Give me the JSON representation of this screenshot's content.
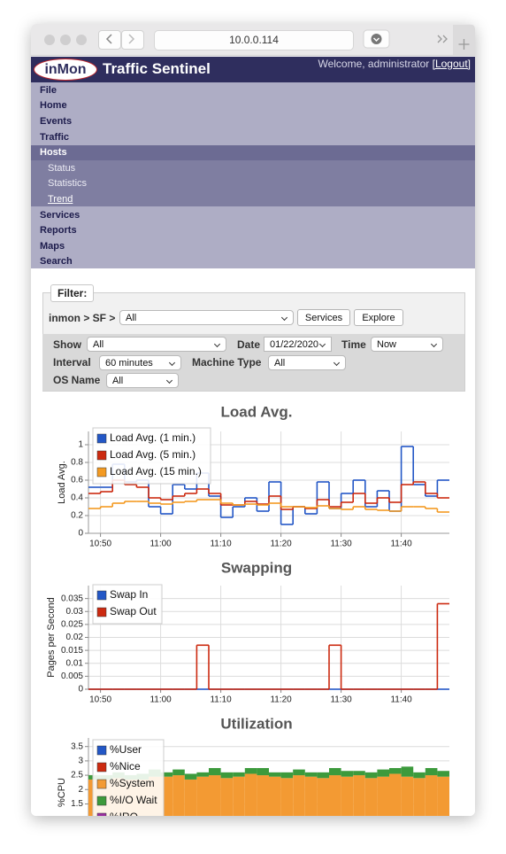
{
  "browser": {
    "url": "10.0.0.114"
  },
  "header": {
    "logo": "inMon",
    "product": "Traffic Sentinel",
    "welcome": "Welcome, administrator",
    "logout": "[Logout]"
  },
  "nav": {
    "items": [
      "File",
      "Home",
      "Events",
      "Traffic",
      "Hosts"
    ],
    "subitems": [
      "Status",
      "Statistics",
      "Trend"
    ],
    "more": [
      "Services",
      "Reports",
      "Maps",
      "Search"
    ]
  },
  "filter": {
    "legend": "Filter:",
    "path": "inmon > SF >",
    "scope": "All",
    "buttons": [
      "Services",
      "Explore"
    ],
    "fields": [
      {
        "label": "Show",
        "value": "All"
      },
      {
        "label": "Date",
        "value": "01/22/2020"
      },
      {
        "label": "Time",
        "value": "Now"
      },
      {
        "label": "Interval",
        "value": "60 minutes"
      },
      {
        "label": "Machine Type",
        "value": "All"
      },
      {
        "label": "OS Name",
        "value": "All"
      }
    ]
  },
  "chart_data": [
    {
      "type": "line",
      "step": true,
      "title": "Load Avg.",
      "y_label": "Load Avg.",
      "grid": true,
      "legend": "upper left",
      "x": [
        "10:48",
        "10:50",
        "10:52",
        "10:54",
        "10:56",
        "10:58",
        "11:00",
        "11:02",
        "11:04",
        "11:06",
        "11:08",
        "11:10",
        "11:12",
        "11:14",
        "11:16",
        "11:18",
        "11:20",
        "11:22",
        "11:24",
        "11:26",
        "11:28",
        "11:30",
        "11:32",
        "11:34",
        "11:36",
        "11:38",
        "11:40",
        "11:42",
        "11:44",
        "11:46"
      ],
      "xlim": [
        "10:48",
        "11:48"
      ],
      "xticks": [
        "10:50",
        "11:00",
        "11:10",
        "11:20",
        "11:30",
        "11:40"
      ],
      "ylim": [
        0,
        1.15
      ],
      "yticks": [
        0,
        0.2,
        0.4,
        0.6,
        0.8,
        1
      ],
      "series": [
        {
          "name": "Load Avg. (1 min.)",
          "color": "#2357c6",
          "values": [
            0.52,
            0.52,
            0.78,
            0.58,
            0.6,
            0.3,
            0.22,
            0.55,
            0.5,
            0.68,
            0.42,
            0.18,
            0.3,
            0.4,
            0.25,
            0.58,
            0.1,
            0.3,
            0.22,
            0.58,
            0.28,
            0.45,
            0.6,
            0.3,
            0.48,
            0.25,
            0.98,
            0.55,
            0.42,
            0.6
          ]
        },
        {
          "name": "Load Avg. (5 min.)",
          "color": "#cc2a10",
          "values": [
            0.45,
            0.47,
            0.6,
            0.55,
            0.52,
            0.4,
            0.38,
            0.42,
            0.45,
            0.5,
            0.45,
            0.32,
            0.32,
            0.36,
            0.33,
            0.42,
            0.27,
            0.3,
            0.28,
            0.38,
            0.3,
            0.35,
            0.45,
            0.34,
            0.4,
            0.35,
            0.55,
            0.58,
            0.45,
            0.4
          ]
        },
        {
          "name": "Load Avg. (15 min.)",
          "color": "#f39a22",
          "values": [
            0.28,
            0.3,
            0.34,
            0.36,
            0.36,
            0.34,
            0.33,
            0.35,
            0.36,
            0.38,
            0.38,
            0.34,
            0.32,
            0.33,
            0.32,
            0.34,
            0.3,
            0.3,
            0.29,
            0.31,
            0.28,
            0.27,
            0.3,
            0.27,
            0.26,
            0.25,
            0.3,
            0.3,
            0.28,
            0.24
          ]
        }
      ]
    },
    {
      "type": "line",
      "step": true,
      "title": "Swapping",
      "y_label": "Pages per Second",
      "grid": true,
      "legend": "upper left",
      "x": [
        "10:48",
        "10:50",
        "10:52",
        "10:54",
        "10:56",
        "10:58",
        "11:00",
        "11:02",
        "11:04",
        "11:06",
        "11:08",
        "11:10",
        "11:12",
        "11:14",
        "11:16",
        "11:18",
        "11:20",
        "11:22",
        "11:24",
        "11:26",
        "11:28",
        "11:30",
        "11:32",
        "11:34",
        "11:36",
        "11:38",
        "11:40",
        "11:42",
        "11:44",
        "11:46"
      ],
      "xlim": [
        "10:48",
        "11:48"
      ],
      "xticks": [
        "10:50",
        "11:00",
        "11:10",
        "11:20",
        "11:30",
        "11:40"
      ],
      "ylim": [
        0,
        0.04
      ],
      "yticks": [
        0,
        0.005,
        0.01,
        0.015,
        0.02,
        0.025,
        0.03,
        0.035
      ],
      "series": [
        {
          "name": "Swap In",
          "color": "#2357c6",
          "values": [
            0,
            0,
            0,
            0,
            0,
            0,
            0,
            0,
            0,
            0,
            0,
            0,
            0,
            0,
            0,
            0,
            0,
            0,
            0,
            0,
            0,
            0,
            0,
            0,
            0,
            0,
            0,
            0,
            0,
            0
          ]
        },
        {
          "name": "Swap Out",
          "color": "#cc2a10",
          "values": [
            0,
            0,
            0,
            0,
            0,
            0,
            0,
            0,
            0,
            0.017,
            0,
            0,
            0,
            0,
            0,
            0,
            0,
            0,
            0,
            0,
            0.017,
            0,
            0,
            0,
            0,
            0,
            0,
            0,
            0,
            0.033
          ]
        }
      ]
    },
    {
      "type": "bar",
      "stacked": true,
      "title": "Utilization",
      "y_label": "%CPU",
      "grid": true,
      "legend": "upper left",
      "x": [
        "10:48",
        "10:50",
        "10:52",
        "10:54",
        "10:56",
        "10:58",
        "11:00",
        "11:02",
        "11:04",
        "11:06",
        "11:08",
        "11:10",
        "11:12",
        "11:14",
        "11:16",
        "11:18",
        "11:20",
        "11:22",
        "11:24",
        "11:26",
        "11:28",
        "11:30",
        "11:32",
        "11:34",
        "11:36",
        "11:38",
        "11:40",
        "11:42",
        "11:44",
        "11:46"
      ],
      "xlim": [
        "10:48",
        "11:48"
      ],
      "ylim": [
        0,
        3.8
      ],
      "yticks": [
        1.5,
        2,
        2.5,
        3,
        3.5
      ],
      "series": [
        {
          "name": "%User",
          "color": "#2357c6",
          "values": [
            0.05,
            0.05,
            0.05,
            0.05,
            0.05,
            0.05,
            0.05,
            0.05,
            0.05,
            0.05,
            0.05,
            0.05,
            0.05,
            0.05,
            0.05,
            0.05,
            0.05,
            0.05,
            0.05,
            0.05,
            0.05,
            0.05,
            0.05,
            0.05,
            0.05,
            0.05,
            0.05,
            0.05,
            0.05,
            0.05
          ]
        },
        {
          "name": "%Nice",
          "color": "#cc2a10",
          "values": [
            0,
            0,
            0,
            0,
            0,
            0,
            0,
            0,
            0,
            0,
            0,
            0,
            0,
            0,
            0,
            0,
            0,
            0,
            0,
            0,
            0,
            0,
            0,
            0,
            0,
            0,
            0,
            0,
            0,
            0
          ]
        },
        {
          "name": "%System",
          "color": "#f39a33",
          "values": [
            2.3,
            2.3,
            2.35,
            2.3,
            2.3,
            2.4,
            2.4,
            2.45,
            2.3,
            2.4,
            2.45,
            2.35,
            2.4,
            2.5,
            2.45,
            2.4,
            2.35,
            2.45,
            2.4,
            2.35,
            2.45,
            2.4,
            2.45,
            2.35,
            2.4,
            2.5,
            2.4,
            2.35,
            2.45,
            2.4
          ]
        },
        {
          "name": "%I/O Wait",
          "color": "#3c9a3c",
          "values": [
            0.15,
            0.15,
            0.2,
            0.15,
            0.2,
            0.25,
            0.15,
            0.2,
            0.2,
            0.15,
            0.25,
            0.2,
            0.15,
            0.2,
            0.25,
            0.15,
            0.2,
            0.2,
            0.15,
            0.2,
            0.25,
            0.2,
            0.15,
            0.2,
            0.25,
            0.2,
            0.35,
            0.2,
            0.25,
            0.2
          ]
        },
        {
          "name": "%IRQ",
          "color": "#9a2fa0",
          "values": [
            0,
            0,
            0,
            0,
            0,
            0,
            0,
            0,
            0,
            0,
            0,
            0,
            0,
            0,
            0,
            0,
            0,
            0,
            0,
            0,
            0,
            0,
            0,
            0,
            0,
            0,
            0,
            0,
            0,
            0
          ]
        }
      ]
    }
  ]
}
